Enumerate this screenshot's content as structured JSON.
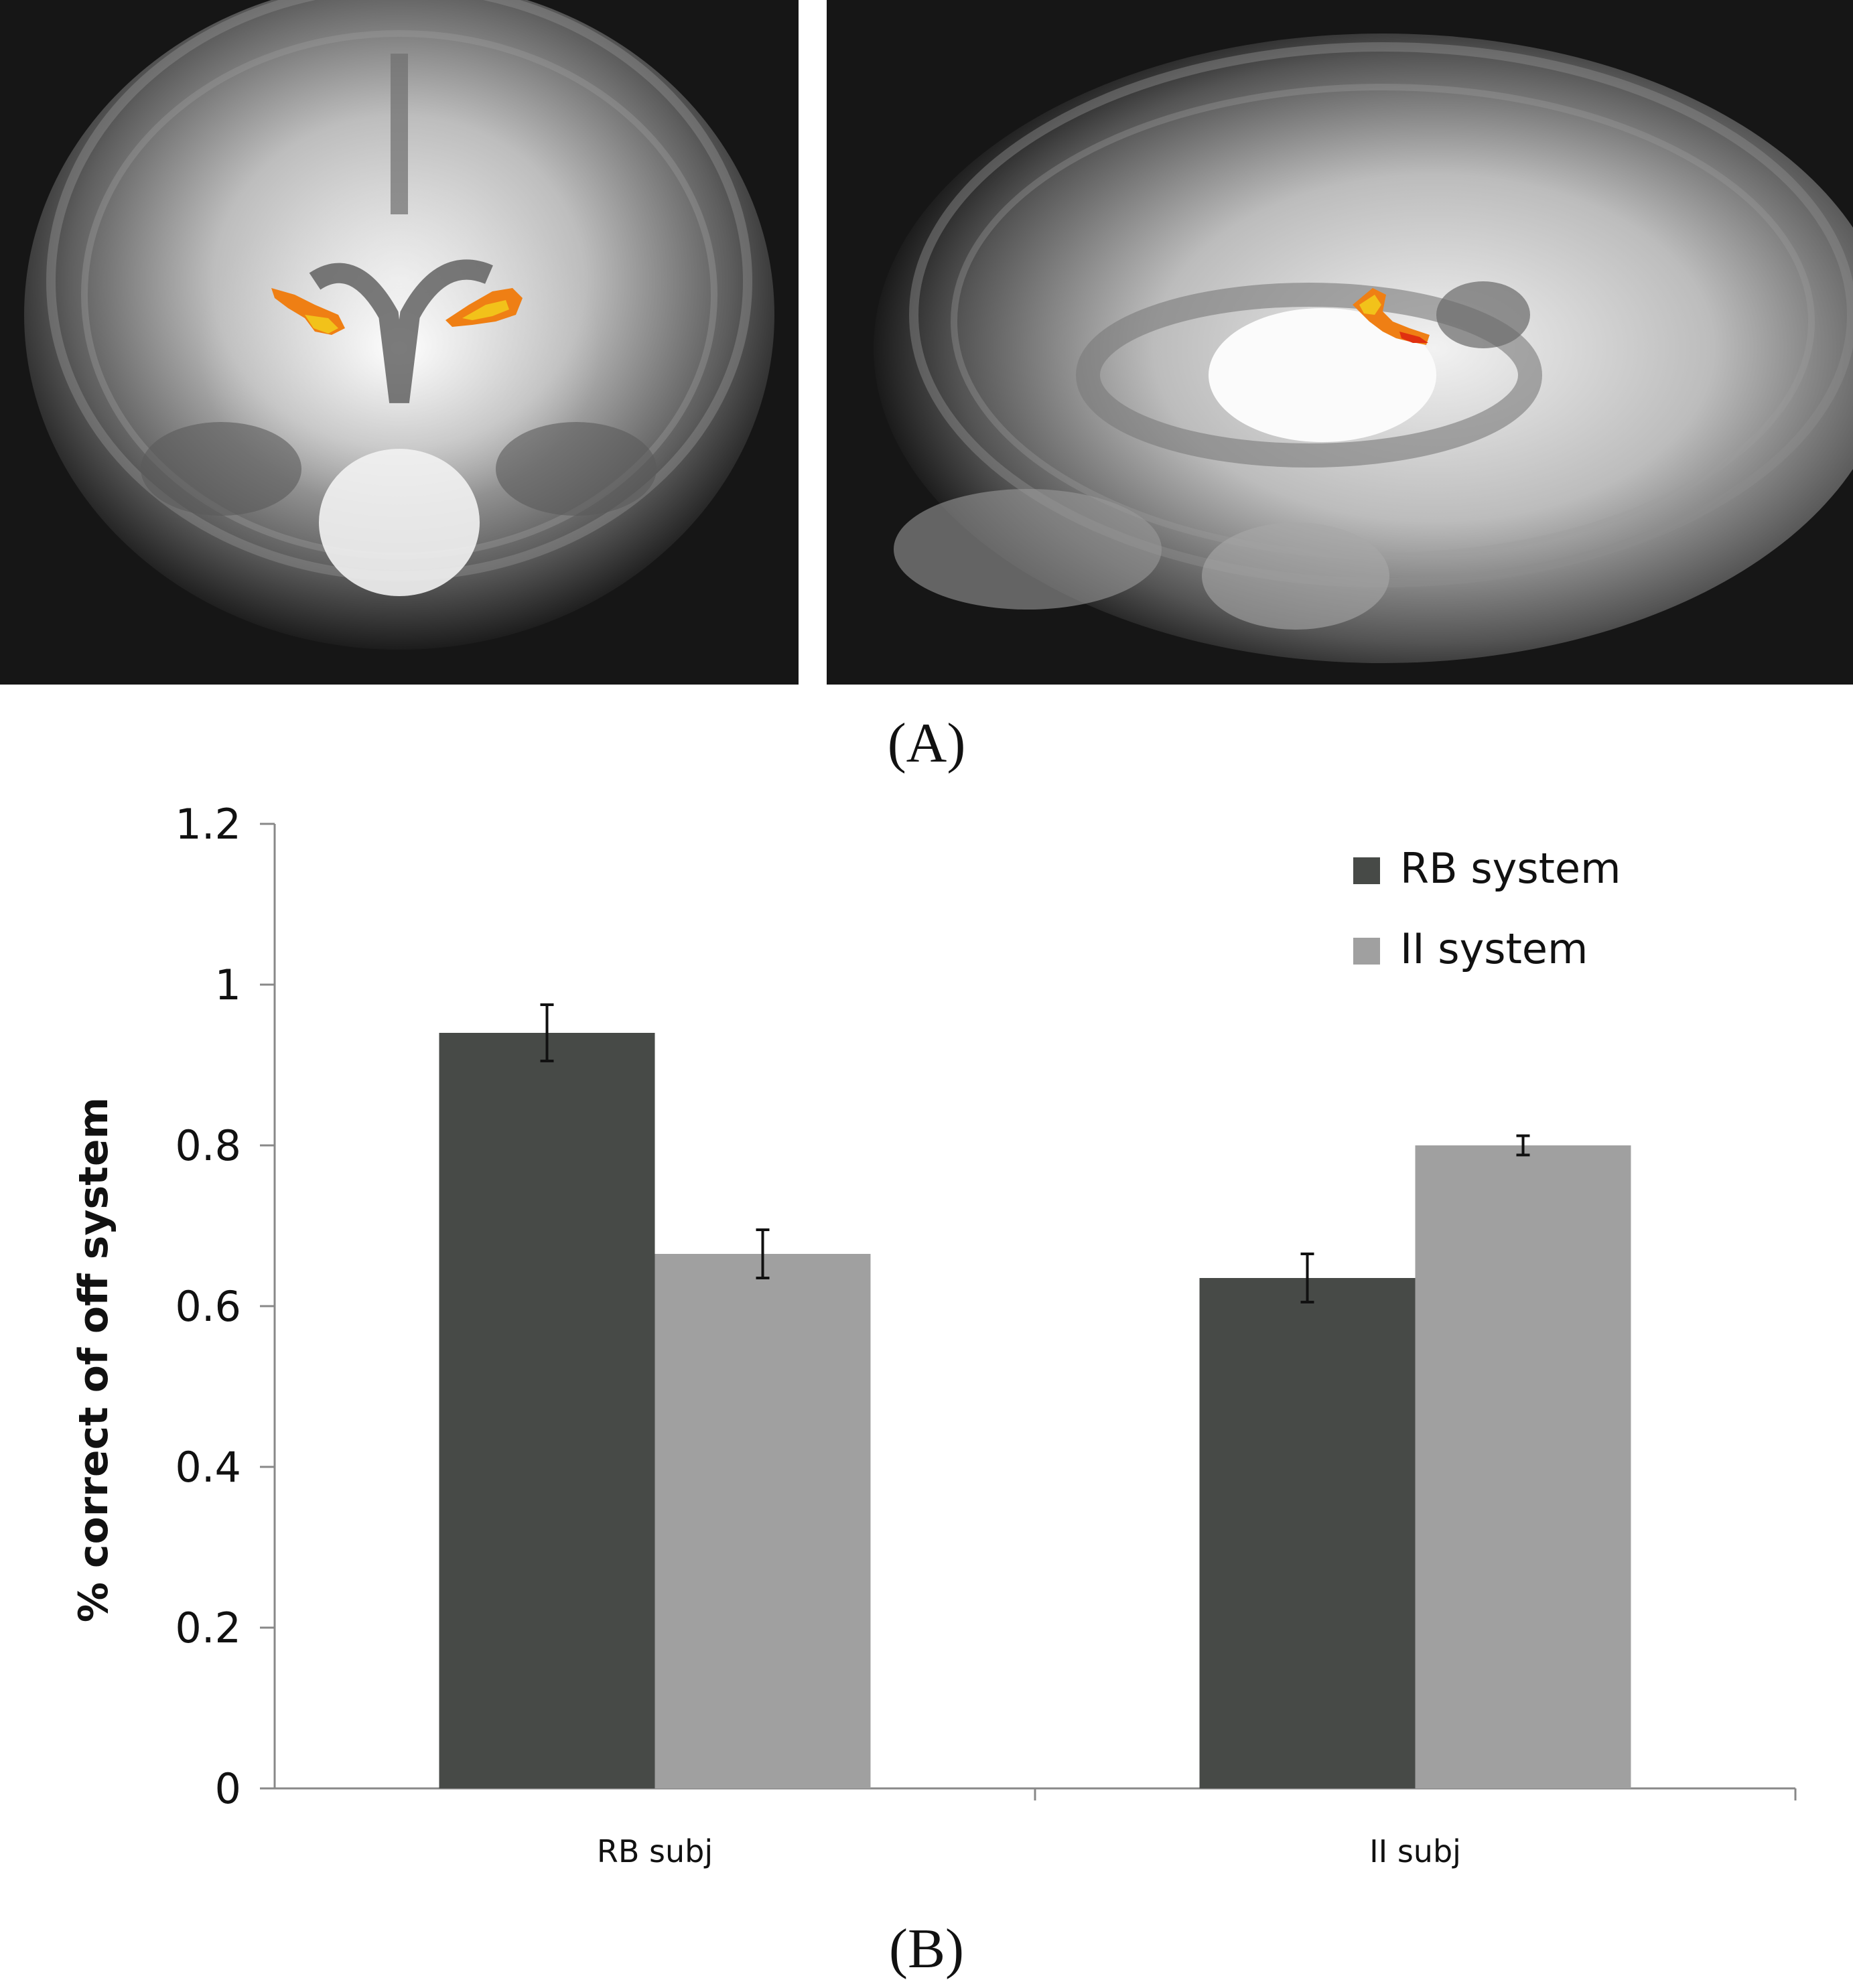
{
  "panels": {
    "a_label": "(A)",
    "b_label": "(B)"
  },
  "chart_data": {
    "type": "bar",
    "categories": [
      "RB subj",
      "II subj"
    ],
    "series": [
      {
        "name": "RB system",
        "values": [
          0.94,
          0.635
        ],
        "errors": [
          0.035,
          0.03
        ],
        "color": "#474a47"
      },
      {
        "name": "II system",
        "values": [
          0.665,
          0.8
        ],
        "errors": [
          0.03,
          0.012
        ],
        "color": "#a0a0a0"
      }
    ],
    "ylabel": "% correct of off system",
    "xlabel": "",
    "ylim": [
      0,
      1.2
    ],
    "yticks": [
      "0",
      "0.2",
      "0.4",
      "0.6",
      "0.8",
      "1",
      "1.2"
    ],
    "legend": "top-right",
    "grid": false
  }
}
